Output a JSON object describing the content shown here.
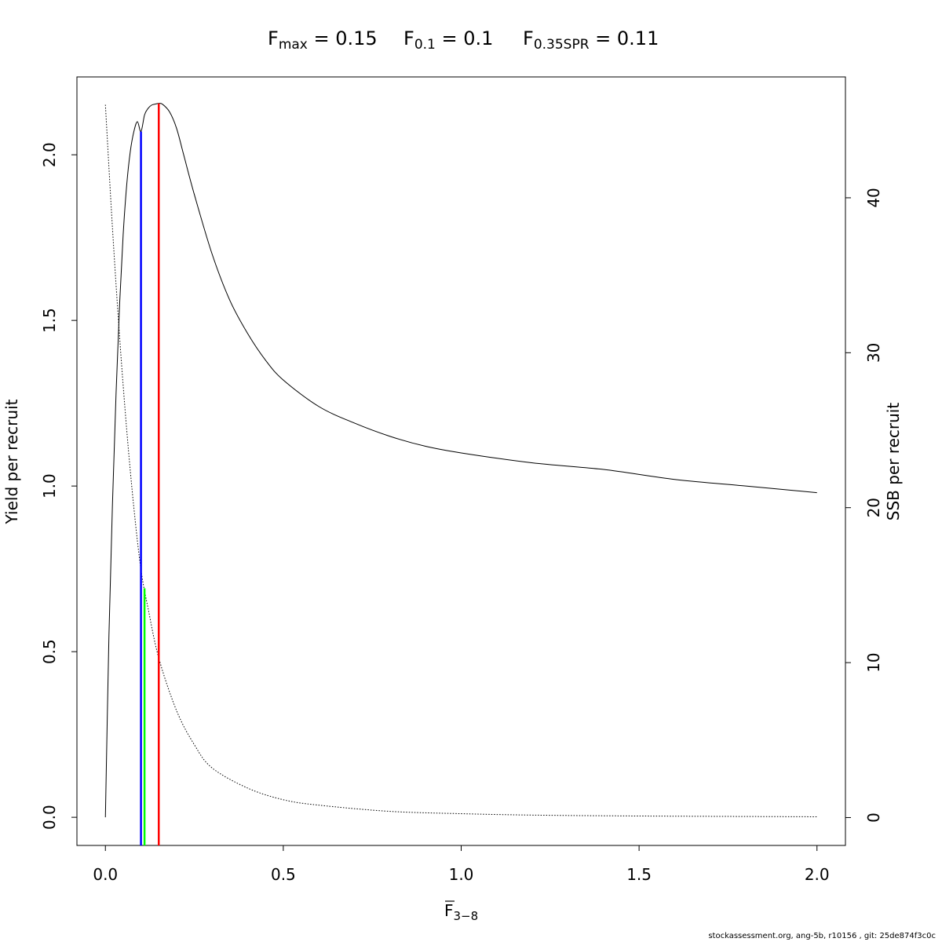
{
  "title": {
    "fmax": {
      "base": "F",
      "sub": "max",
      "rest": " = 0.15"
    },
    "f01": {
      "base": "F",
      "sub": "0.1",
      "rest": " = 0.1"
    },
    "fspr": {
      "base": "F",
      "sub": "0.35SPR",
      "rest": " = 0.11"
    }
  },
  "footer": "stockassessment.org, ang-5b, r10156 , git: 25de874f3c0c",
  "chart_data": {
    "type": "line",
    "xlabel": {
      "base": "F",
      "sub": "3−8",
      "overline": true
    },
    "ylabel_left": "Yield per recruit",
    "ylabel_right": "SSB per recruit",
    "xlim": [
      -0.08,
      2.08
    ],
    "ylim_left": [
      -0.085,
      2.235
    ],
    "ylim_right": [
      -1.8,
      47.8
    ],
    "x_ticks": [
      0,
      0.5,
      1,
      1.5,
      2
    ],
    "x_tick_labels": [
      "0.0",
      "0.5",
      "1.0",
      "1.5",
      "2.0"
    ],
    "y_left_ticks": [
      0,
      0.5,
      1,
      1.5,
      2
    ],
    "y_left_tick_labels": [
      "0.0",
      "0.5",
      "1.0",
      "1.5",
      "2.0"
    ],
    "y_right_ticks": [
      0,
      10,
      20,
      30,
      40
    ],
    "y_right_tick_labels": [
      "0",
      "10",
      "20",
      "30",
      "40"
    ],
    "series": [
      {
        "axis": "left",
        "style": "solid",
        "color": "#000000",
        "x": [
          0,
          0.01,
          0.02,
          0.03,
          0.04,
          0.05,
          0.06,
          0.07,
          0.08,
          0.09,
          0.1,
          0.11,
          0.12,
          0.13,
          0.14,
          0.15,
          0.16,
          0.18,
          0.2,
          0.22,
          0.25,
          0.3,
          0.35,
          0.4,
          0.45,
          0.5,
          0.6,
          0.7,
          0.8,
          0.9,
          1.0,
          1.2,
          1.4,
          1.6,
          1.8,
          2.0
        ],
        "y": [
          0.0,
          0.55,
          0.95,
          1.28,
          1.55,
          1.76,
          1.91,
          2.01,
          2.07,
          2.1,
          2.07,
          2.12,
          2.14,
          2.15,
          2.153,
          2.155,
          2.153,
          2.13,
          2.08,
          2.0,
          1.88,
          1.7,
          1.56,
          1.46,
          1.38,
          1.32,
          1.24,
          1.19,
          1.15,
          1.12,
          1.1,
          1.07,
          1.05,
          1.02,
          1.0,
          0.98
        ]
      },
      {
        "axis": "right",
        "style": "dotted",
        "color": "#000000",
        "x": [
          0,
          0.02,
          0.04,
          0.06,
          0.08,
          0.1,
          0.12,
          0.15,
          0.2,
          0.25,
          0.3,
          0.4,
          0.5,
          0.6,
          0.8,
          1.0,
          1.2,
          1.5,
          2.0
        ],
        "y": [
          46,
          38,
          31,
          25,
          20,
          16,
          13.5,
          10.3,
          6.9,
          4.7,
          3.2,
          1.9,
          1.15,
          0.8,
          0.4,
          0.25,
          0.16,
          0.1,
          0.05
        ]
      }
    ],
    "reference_lines": [
      {
        "name": "F0.1",
        "x": 0.1,
        "y_top_left": 2.07,
        "color": "#0000ff"
      },
      {
        "name": "F0.35SPR",
        "x": 0.11,
        "y_top_right": 14.8,
        "color": "#00ff00"
      },
      {
        "name": "Fmax",
        "x": 0.15,
        "y_top_left": 2.155,
        "color": "#ff0000"
      }
    ]
  }
}
